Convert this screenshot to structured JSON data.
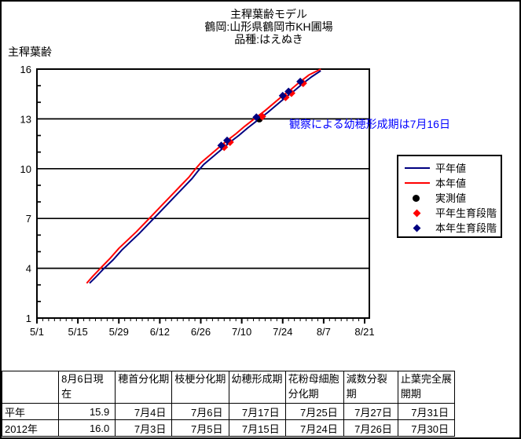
{
  "title": {
    "line1": "主稈葉齢モデル",
    "line2": "鶴岡:山形県鶴岡市KH圃場",
    "line3": "品種:はえぬき"
  },
  "y_axis_title": "主稈葉齢",
  "annotation": {
    "text": "観察による幼穂形成期は7月16日",
    "date": "7/16",
    "leaf_age": 13,
    "color": "#0000ff"
  },
  "colors": {
    "normal_year_line": "#000080",
    "current_year_line": "#ff0000",
    "measured_marker": "#000000",
    "normal_stage_marker": "#ff0000",
    "current_stage_marker": "#000080",
    "annotation_text": "#0000ff",
    "axis": "#000000"
  },
  "legend": [
    {
      "label": "平年値",
      "type": "line",
      "color": "#000080"
    },
    {
      "label": "本年値",
      "type": "line",
      "color": "#ff0000"
    },
    {
      "label": "実測値",
      "type": "circle",
      "color": "#000000"
    },
    {
      "label": "平年生育段階",
      "type": "diamond",
      "color": "#ff0000"
    },
    {
      "label": "本年生育段階",
      "type": "diamond",
      "color": "#000080"
    }
  ],
  "chart_data": {
    "type": "line",
    "title": "主稈葉齢モデル",
    "xlabel": "",
    "ylabel": "主稈葉齢",
    "ylim": [
      1,
      16
    ],
    "y_major_ticks": [
      16,
      13,
      10,
      7,
      4,
      1
    ],
    "y_gridlines": [
      4,
      7,
      10,
      13
    ],
    "x_range": [
      "5/1",
      "8/21"
    ],
    "x_tick_labels": [
      "5/1",
      "5/15",
      "5/29",
      "6/12",
      "6/26",
      "7/10",
      "7/24",
      "8/7",
      "8/21"
    ],
    "x_minor_interval_days": 2,
    "legend_position": "right",
    "grid": true,
    "series": [
      {
        "name": "平年値",
        "type": "line",
        "color": "#000080",
        "points": [
          [
            "5/19",
            3.1
          ],
          [
            "5/21",
            3.45
          ],
          [
            "5/24",
            4.0
          ],
          [
            "5/27",
            4.5
          ],
          [
            "5/30",
            5.1
          ],
          [
            "6/2",
            5.6
          ],
          [
            "6/5",
            6.1
          ],
          [
            "6/8",
            6.65
          ],
          [
            "6/11",
            7.2
          ],
          [
            "6/14",
            7.75
          ],
          [
            "6/17",
            8.3
          ],
          [
            "6/20",
            8.85
          ],
          [
            "6/23",
            9.4
          ],
          [
            "6/25",
            9.85
          ],
          [
            "6/27",
            10.25
          ],
          [
            "6/30",
            10.7
          ],
          [
            "7/3",
            11.15
          ],
          [
            "7/6",
            11.6
          ],
          [
            "7/9",
            12.0
          ],
          [
            "7/12",
            12.45
          ],
          [
            "7/16",
            13.0
          ],
          [
            "7/19",
            13.4
          ],
          [
            "7/22",
            13.85
          ],
          [
            "7/25",
            14.3
          ],
          [
            "7/28",
            14.7
          ],
          [
            "7/31",
            15.15
          ],
          [
            "8/3",
            15.55
          ],
          [
            "8/6",
            15.9
          ]
        ]
      },
      {
        "name": "本年値",
        "type": "line",
        "color": "#ff0000",
        "points": [
          [
            "5/18",
            3.1
          ],
          [
            "5/20",
            3.5
          ],
          [
            "5/23",
            4.05
          ],
          [
            "5/26",
            4.6
          ],
          [
            "5/29",
            5.2
          ],
          [
            "6/1",
            5.7
          ],
          [
            "6/4",
            6.2
          ],
          [
            "6/7",
            6.75
          ],
          [
            "6/10",
            7.3
          ],
          [
            "6/13",
            7.85
          ],
          [
            "6/16",
            8.4
          ],
          [
            "6/19",
            8.95
          ],
          [
            "6/22",
            9.5
          ],
          [
            "6/24",
            9.95
          ],
          [
            "6/26",
            10.35
          ],
          [
            "6/29",
            10.8
          ],
          [
            "7/2",
            11.25
          ],
          [
            "7/5",
            11.7
          ],
          [
            "7/8",
            12.1
          ],
          [
            "7/11",
            12.55
          ],
          [
            "7/15",
            13.1
          ],
          [
            "7/18",
            13.5
          ],
          [
            "7/21",
            13.95
          ],
          [
            "7/24",
            14.4
          ],
          [
            "7/27",
            14.8
          ],
          [
            "7/30",
            15.25
          ],
          [
            "8/2",
            15.65
          ],
          [
            "8/6",
            16.0
          ]
        ]
      },
      {
        "name": "実測値",
        "type": "circle",
        "color": "#000000",
        "points": [
          [
            "7/16",
            13.0
          ]
        ]
      },
      {
        "name": "平年生育段階",
        "type": "diamond",
        "color": "#ff0000",
        "points": [
          [
            "7/4",
            11.3
          ],
          [
            "7/6",
            11.6
          ],
          [
            "7/17",
            13.15
          ],
          [
            "7/25",
            14.3
          ],
          [
            "7/27",
            14.55
          ],
          [
            "7/31",
            15.15
          ]
        ]
      },
      {
        "name": "本年生育段階",
        "type": "diamond",
        "color": "#000080",
        "points": [
          [
            "7/3",
            11.4
          ],
          [
            "7/5",
            11.7
          ],
          [
            "7/15",
            13.1
          ],
          [
            "7/24",
            14.4
          ],
          [
            "7/26",
            14.65
          ],
          [
            "7/30",
            15.25
          ]
        ]
      }
    ]
  },
  "table": {
    "headers": [
      "8月6日現在",
      "穂首分化期",
      "枝梗分化期",
      "幼穂形成期",
      "花粉母細胞分化期",
      "減数分裂期",
      "止葉完全展開期"
    ],
    "rows": [
      {
        "label": "平年",
        "values": [
          "15.9",
          "7月4日",
          "7月6日",
          "7月17日",
          "7月25日",
          "7月27日",
          "7月31日"
        ]
      },
      {
        "label": "2012年",
        "values": [
          "16.0",
          "7月3日",
          "7月5日",
          "7月15日",
          "7月24日",
          "7月26日",
          "7月30日"
        ]
      }
    ]
  }
}
